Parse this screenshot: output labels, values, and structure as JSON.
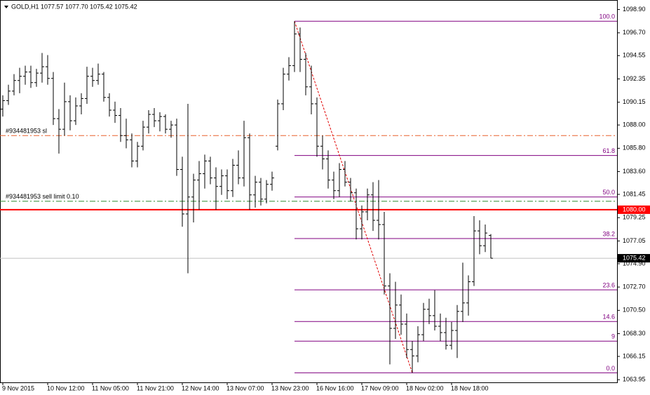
{
  "chart_data": {
    "type": "ohlc",
    "title": "GOLD,H1 1077.57 1077.70 1075.42 1075.42",
    "categories": [
      "9 Nov 2015",
      null,
      null,
      null,
      null,
      null,
      null,
      null,
      "10 Nov 12:00",
      null,
      null,
      null,
      null,
      null,
      null,
      null,
      "11 Nov 05:00",
      null,
      null,
      null,
      null,
      null,
      null,
      null,
      "11 Nov 21:00",
      null,
      null,
      null,
      null,
      null,
      null,
      null,
      "12 Nov 14:00",
      null,
      null,
      null,
      null,
      null,
      null,
      null,
      "13 Nov 07:00",
      null,
      null,
      null,
      null,
      null,
      null,
      null,
      "13 Nov 23:00",
      null,
      null,
      null,
      null,
      null,
      null,
      null,
      "16 Nov 16:00",
      null,
      null,
      null,
      null,
      null,
      null,
      null,
      "17 Nov 09:00",
      null,
      null,
      null,
      null,
      null,
      null,
      null,
      "18 Nov 02:00",
      null,
      null,
      null,
      null,
      null,
      null,
      null,
      "18 Nov 18:00",
      null,
      null,
      null,
      null,
      null,
      null,
      null
    ],
    "open": [
      1089.5,
      1090.3,
      1091.2,
      1092.2,
      1092.6,
      1093.0,
      1092.0,
      1092.9,
      1093.5,
      1092.4,
      1088.6,
      1087.6,
      1090.2,
      1088.4,
      1089.8,
      1090.5,
      1092.6,
      1092.2,
      1092.8,
      1090.6,
      1089.4,
      1088.9,
      1087.0,
      1086.6,
      1084.6,
      1086.0,
      1087.8,
      1089.0,
      1088.4,
      1088.8,
      1087.6,
      1088.0,
      1083.8,
      1079.6,
      1081.2,
      1082.8,
      1083.4,
      1084.6,
      1083.0,
      1082.2,
      1083.2,
      1081.8,
      1084.2,
      1083.0,
      1086.8,
      1081.4,
      1082.6,
      1081.0,
      1082.4,
      1086.0,
      1090.0,
      1092.8,
      1093.6,
      1096.6,
      1094.2,
      1091.6,
      1090.0,
      1086.0,
      1084.8,
      1082.8,
      1081.8,
      1083.8,
      1082.6,
      1081.6,
      1078.2,
      1079.8,
      1081.4,
      1079.0,
      1078.6,
      1072.8,
      1068.8,
      1071.0,
      1069.2,
      1066.8,
      1066.2,
      1068.2,
      1070.6,
      1070.0,
      1069.0,
      1068.4,
      1067.2,
      1068.6,
      1070.4,
      1071.2,
      1073.2,
      1078.0,
      1076.6,
      1077.57
    ],
    "high": [
      1090.8,
      1091.8,
      1092.8,
      1093.4,
      1093.6,
      1093.6,
      1093.3,
      1094.8,
      1094.6,
      1093.0,
      1089.5,
      1092.0,
      1090.8,
      1090.6,
      1091.0,
      1093.5,
      1093.4,
      1093.8,
      1093.0,
      1091.0,
      1090.2,
      1089.6,
      1088.6,
      1087.2,
      1086.4,
      1088.4,
      1089.4,
      1089.6,
      1089.2,
      1089.0,
      1088.4,
      1088.6,
      1085.0,
      1090.0,
      1083.4,
      1084.6,
      1085.2,
      1085.0,
      1084.0,
      1083.8,
      1083.8,
      1084.8,
      1085.6,
      1088.4,
      1087.2,
      1083.2,
      1083.0,
      1082.8,
      1083.6,
      1090.4,
      1093.4,
      1094.4,
      1097.8,
      1097.2,
      1094.8,
      1093.6,
      1090.6,
      1087.0,
      1085.6,
      1083.6,
      1084.4,
      1084.6,
      1083.0,
      1082.0,
      1080.4,
      1082.0,
      1082.6,
      1082.8,
      1079.8,
      1074.0,
      1073.2,
      1072.0,
      1070.2,
      1067.6,
      1069.0,
      1071.2,
      1071.6,
      1072.4,
      1070.2,
      1069.8,
      1069.4,
      1071.0,
      1075.0,
      1073.8,
      1079.4,
      1079.0,
      1078.6,
      1077.7
    ],
    "low": [
      1088.8,
      1089.9,
      1090.8,
      1091.0,
      1091.8,
      1091.5,
      1091.6,
      1092.0,
      1091.8,
      1088.0,
      1085.3,
      1087.0,
      1087.5,
      1088.0,
      1089.0,
      1090.0,
      1091.6,
      1091.8,
      1090.2,
      1088.8,
      1088.2,
      1086.4,
      1085.8,
      1084.0,
      1084.0,
      1085.6,
      1087.2,
      1087.8,
      1087.4,
      1087.2,
      1086.8,
      1083.2,
      1078.4,
      1074.0,
      1078.8,
      1080.0,
      1082.0,
      1082.4,
      1080.0,
      1081.4,
      1081.0,
      1081.2,
      1082.4,
      1082.2,
      1080.0,
      1080.2,
      1080.4,
      1080.6,
      1081.8,
      1085.6,
      1089.4,
      1092.2,
      1093.0,
      1093.0,
      1090.8,
      1089.0,
      1085.0,
      1083.8,
      1082.0,
      1081.0,
      1081.2,
      1082.2,
      1080.8,
      1077.2,
      1077.2,
      1079.0,
      1078.0,
      1077.2,
      1072.0,
      1065.4,
      1067.8,
      1068.2,
      1066.0,
      1064.6,
      1065.6,
      1067.6,
      1069.2,
      1068.6,
      1067.6,
      1066.8,
      1066.8,
      1066.0,
      1069.4,
      1070.0,
      1072.8,
      1075.8,
      1076.0,
      1075.42
    ],
    "close": [
      1090.3,
      1091.2,
      1092.2,
      1092.6,
      1093.0,
      1092.0,
      1092.9,
      1093.5,
      1092.4,
      1088.6,
      1087.6,
      1090.2,
      1088.4,
      1089.8,
      1090.5,
      1092.6,
      1092.2,
      1092.8,
      1090.6,
      1089.4,
      1088.9,
      1087.0,
      1086.6,
      1084.6,
      1086.0,
      1087.8,
      1089.0,
      1088.4,
      1088.8,
      1087.6,
      1088.0,
      1083.8,
      1079.6,
      1081.2,
      1082.8,
      1083.4,
      1084.6,
      1083.0,
      1082.2,
      1083.2,
      1081.8,
      1084.2,
      1083.0,
      1086.8,
      1081.4,
      1082.6,
      1081.0,
      1082.4,
      1083.0,
      1090.0,
      1092.8,
      1093.6,
      1096.6,
      1094.2,
      1091.6,
      1090.0,
      1086.0,
      1084.8,
      1082.8,
      1081.8,
      1083.8,
      1082.6,
      1081.6,
      1078.2,
      1079.8,
      1081.4,
      1079.0,
      1078.6,
      1072.8,
      1068.8,
      1071.0,
      1069.2,
      1066.8,
      1066.2,
      1068.2,
      1070.6,
      1070.0,
      1069.0,
      1068.4,
      1067.2,
      1068.6,
      1070.4,
      1071.2,
      1073.2,
      1078.0,
      1076.6,
      1077.8,
      1075.42
    ],
    "color": "#000000",
    "ylim": [
      1063.7,
      1099.8
    ],
    "yticks": [
      {
        "value": 1098.9,
        "label": "1098.90"
      },
      {
        "value": 1096.7,
        "label": "1096.70"
      },
      {
        "value": 1094.55,
        "label": "1094.55"
      },
      {
        "value": 1092.35,
        "label": "1092.35"
      },
      {
        "value": 1090.15,
        "label": "1090.15"
      },
      {
        "value": 1088,
        "label": "1088.00"
      },
      {
        "value": 1085.8,
        "label": "1085.80"
      },
      {
        "value": 1083.6,
        "label": "1083.60"
      },
      {
        "value": 1081.45,
        "label": "1081.45"
      },
      {
        "value": 1079.25,
        "label": "1079.25"
      },
      {
        "value": 1077.05,
        "label": "1077.05"
      },
      {
        "value": 1074.9,
        "label": "1074.90"
      },
      {
        "value": 1072.7,
        "label": "1072.70"
      },
      {
        "value": 1070.5,
        "label": "1070.50"
      },
      {
        "value": 1068.3,
        "label": "1068.30"
      },
      {
        "value": 1066.15,
        "label": "1066.15"
      },
      {
        "value": 1063.95,
        "label": "1063.95"
      }
    ],
    "order_lines": [
      {
        "name": "#934481953 sl",
        "value": 1087.0,
        "color": "#e8602c"
      },
      {
        "name": "#934481953 sell limit 0.10",
        "value": 1080.8,
        "color": "#2e8b2e"
      }
    ],
    "price_lines": [
      {
        "value": 1080,
        "label": "1080.00",
        "color": "#ff0000"
      },
      {
        "value": 1075.42,
        "label": "1075.42",
        "color": "#c0c0c0"
      }
    ],
    "fibo": {
      "high": 1097.8,
      "low": 1064.6,
      "color": "#800080",
      "trend_color": "#e00000",
      "levels": [
        {
          "value": 100,
          "label": "100.0"
        },
        {
          "value": 61.8,
          "label": "61.8"
        },
        {
          "value": 50,
          "label": "50.0"
        },
        {
          "value": 38.2,
          "label": "38.2"
        },
        {
          "value": 23.6,
          "label": "23.6"
        },
        {
          "value": 14.6,
          "label": "14.6"
        },
        9,
        {
          "value": 0,
          "label": "0.0"
        }
      ]
    }
  }
}
